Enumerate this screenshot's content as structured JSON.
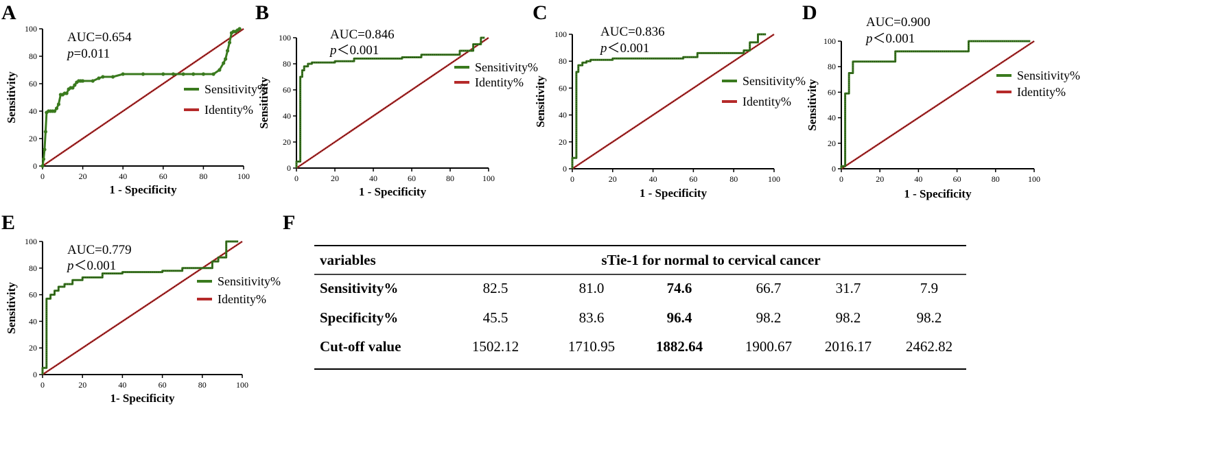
{
  "colors": {
    "sensitivity": "#3a7a1e",
    "identity": "#b52a2a",
    "axis": "#000000"
  },
  "chart_data": [
    {
      "panel": "A",
      "type": "line",
      "xlabel": "1 - Specificity",
      "ylabel": "Sensitivity",
      "xlim": [
        0,
        100
      ],
      "ylim": [
        0,
        100
      ],
      "xticks": [
        "0",
        "20",
        "40",
        "60",
        "80",
        "100"
      ],
      "yticks": [
        "0",
        "20",
        "40",
        "60",
        "80",
        "100"
      ],
      "auc": "AUC=0.654",
      "p_label": "p",
      "p_rest": "=0.011",
      "legend": [
        "Sensitivity%",
        "Identity%"
      ],
      "marker": "dots",
      "series": [
        {
          "name": "Sensitivity%",
          "x": [
            0,
            0.5,
            1,
            1.5,
            2,
            3,
            4,
            5,
            6,
            7,
            8,
            9,
            10,
            11,
            12,
            13,
            14,
            15,
            16,
            17,
            18,
            19,
            20,
            25,
            28,
            30,
            35,
            40,
            50,
            60,
            65,
            70,
            75,
            80,
            85,
            88,
            90,
            91,
            92,
            93,
            94,
            95,
            96,
            97,
            98
          ],
          "y": [
            0,
            5,
            12,
            25,
            39,
            40,
            40,
            40,
            40,
            42,
            45,
            52,
            52,
            53,
            53,
            56,
            57,
            57,
            59,
            61,
            62,
            62,
            62,
            62,
            64,
            65,
            65,
            67,
            67,
            67,
            67,
            67,
            67,
            67,
            67,
            70,
            75,
            78,
            84,
            90,
            97,
            98,
            98,
            99,
            100
          ]
        },
        {
          "name": "Identity%",
          "x": [
            0,
            100
          ],
          "y": [
            0,
            100
          ]
        }
      ]
    },
    {
      "panel": "B",
      "type": "line",
      "xlabel": "1 - Specificity",
      "ylabel": "Sensitivity",
      "xlim": [
        0,
        100
      ],
      "ylim": [
        0,
        100
      ],
      "xticks": [
        "0",
        "20",
        "40",
        "60",
        "80",
        "100"
      ],
      "yticks": [
        "0",
        "20",
        "40",
        "60",
        "80",
        "100"
      ],
      "auc": "AUC=0.846",
      "p_label": "p",
      "p_rest": "＜0.001",
      "legend": [
        "Sensitivity%",
        "Identity%"
      ],
      "marker": "step",
      "series": [
        {
          "name": "Sensitivity%",
          "x": [
            0,
            0,
            2,
            2,
            3,
            3,
            4,
            4,
            6,
            6,
            8,
            8,
            20,
            20,
            30,
            30,
            55,
            55,
            65,
            65,
            85,
            85,
            92,
            92,
            96,
            96,
            98
          ],
          "y": [
            0,
            5,
            5,
            70,
            70,
            75,
            75,
            78,
            78,
            80,
            80,
            81,
            81,
            82,
            82,
            84,
            84,
            85,
            85,
            87,
            87,
            90,
            90,
            95,
            95,
            100,
            100
          ]
        },
        {
          "name": "Identity%",
          "x": [
            0,
            100
          ],
          "y": [
            0,
            100
          ]
        }
      ]
    },
    {
      "panel": "C",
      "type": "line",
      "xlabel": "1 - Specificity",
      "ylabel": "Sensitivity",
      "xlim": [
        0,
        100
      ],
      "ylim": [
        0,
        100
      ],
      "xticks": [
        "0",
        "20",
        "40",
        "60",
        "80",
        "100"
      ],
      "yticks": [
        "0",
        "20",
        "40",
        "60",
        "80",
        "100"
      ],
      "auc": "AUC=0.836",
      "p_label": "p",
      "p_rest": "＜0.001",
      "legend": [
        "Sensitivity%",
        "Identity%"
      ],
      "marker": "step",
      "series": [
        {
          "name": "Sensitivity%",
          "x": [
            0,
            0,
            2,
            2,
            3,
            3,
            5,
            5,
            7,
            7,
            9,
            9,
            20,
            20,
            55,
            55,
            62,
            62,
            85,
            85,
            88,
            88,
            92,
            92,
            96
          ],
          "y": [
            0,
            8,
            8,
            72,
            72,
            77,
            77,
            79,
            79,
            80,
            80,
            81,
            81,
            82,
            82,
            83,
            83,
            86,
            86,
            88,
            88,
            94,
            94,
            100,
            100
          ]
        },
        {
          "name": "Identity%",
          "x": [
            0,
            100
          ],
          "y": [
            0,
            100
          ]
        }
      ]
    },
    {
      "panel": "D",
      "type": "line",
      "xlabel": "1 - Specificity",
      "ylabel": "Sensitivity",
      "xlim": [
        0,
        100
      ],
      "ylim": [
        0,
        100
      ],
      "xticks": [
        "0",
        "20",
        "40",
        "60",
        "80",
        "100"
      ],
      "yticks": [
        "0",
        "20",
        "40",
        "60",
        "80",
        "100"
      ],
      "auc": "AUC=0.900",
      "p_label": "p",
      "p_rest": "＜0.001",
      "legend": [
        "Sensitivity%",
        "Identity%"
      ],
      "marker": "step",
      "series": [
        {
          "name": "Sensitivity%",
          "x": [
            0,
            0,
            2,
            2,
            4,
            4,
            6,
            6,
            28,
            28,
            66,
            66,
            98
          ],
          "y": [
            0,
            2,
            2,
            59,
            59,
            75,
            75,
            84,
            84,
            92,
            92,
            100,
            100
          ]
        },
        {
          "name": "Identity%",
          "x": [
            0,
            100
          ],
          "y": [
            0,
            100
          ]
        }
      ]
    },
    {
      "panel": "E",
      "type": "line",
      "xlabel": "1- Specificity",
      "ylabel": "Sensitivity",
      "xlim": [
        0,
        100
      ],
      "ylim": [
        0,
        100
      ],
      "xticks": [
        "0",
        "20",
        "40",
        "60",
        "80",
        "100"
      ],
      "yticks": [
        "0",
        "20",
        "40",
        "60",
        "80",
        "100"
      ],
      "auc": "AUC=0.779",
      "p_label": "p",
      "p_rest": "＜0.001",
      "legend": [
        "Sensitivity%",
        "Identity%"
      ],
      "marker": "step",
      "series": [
        {
          "name": "Sensitivity%",
          "x": [
            0,
            0,
            2,
            2,
            4,
            4,
            6,
            6,
            8,
            8,
            11,
            11,
            15,
            15,
            20,
            20,
            30,
            30,
            40,
            40,
            60,
            60,
            70,
            70,
            85,
            85,
            88,
            88,
            92,
            92,
            98
          ],
          "y": [
            0,
            5,
            5,
            57,
            57,
            60,
            60,
            63,
            63,
            66,
            66,
            68,
            68,
            71,
            71,
            73,
            73,
            76,
            76,
            77,
            77,
            78,
            78,
            80,
            80,
            85,
            85,
            88,
            88,
            100,
            100
          ]
        },
        {
          "name": "Identity%",
          "x": [
            0,
            100
          ],
          "y": [
            0,
            100
          ]
        }
      ]
    },
    {
      "panel": "F",
      "type": "table",
      "columns": [
        "variables",
        "sTie-1 for normal to cervical cancer"
      ],
      "rows": [
        {
          "label": "Sensitivity%",
          "values": [
            "82.5",
            "81.0",
            "74.6",
            "66.7",
            "31.7",
            "7.9"
          ]
        },
        {
          "label": "Specificity%",
          "values": [
            "45.5",
            "83.6",
            "96.4",
            "98.2",
            "98.2",
            "98.2"
          ]
        },
        {
          "label": "Cut-off value",
          "values": [
            "1502.12",
            "1710.95",
            "1882.64",
            "1900.67",
            "2016.17",
            "2462.82"
          ]
        }
      ],
      "bold_column": 2
    }
  ]
}
